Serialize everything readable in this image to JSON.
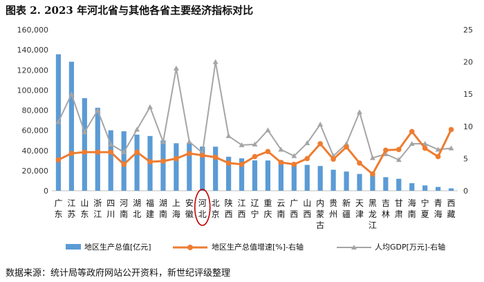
{
  "title": "图表 2.  2023 年河北省与其他各省主要经济指标对比",
  "source": "数据来源：统计局等政府网站公开资料，新世纪评级整理",
  "chart_data": {
    "type": "bar",
    "categories": [
      "广东",
      "江苏",
      "山东",
      "浙江",
      "四川",
      "河南",
      "湖北",
      "福建",
      "湖南",
      "上海",
      "安徽",
      "河北",
      "北京",
      "陕西",
      "江西",
      "辽宁",
      "重庆",
      "云南",
      "广西",
      "山西",
      "内蒙古",
      "贵州",
      "新疆",
      "天津",
      "黑龙江",
      "吉林",
      "甘肃",
      "海南",
      "宁夏",
      "青海",
      "西藏"
    ],
    "highlight_category": "河北",
    "series": [
      {
        "name": "地区生产总值[亿元]",
        "kind": "bar",
        "axis": "left",
        "color": "#5B9BD5",
        "values": [
          135600,
          128200,
          92000,
          82500,
          60100,
          59100,
          55800,
          54400,
          50000,
          47200,
          47100,
          43900,
          43800,
          33800,
          32200,
          30200,
          30100,
          30000,
          27200,
          25700,
          24600,
          20900,
          19100,
          16700,
          15900,
          13500,
          11900,
          7500,
          5300,
          3800,
          2400
        ]
      },
      {
        "name": "地区生产总值增速[%]-右轴",
        "kind": "line",
        "axis": "right",
        "color": "#ED7D31",
        "values": [
          4.8,
          5.8,
          6.0,
          6.0,
          6.0,
          4.1,
          6.0,
          4.5,
          4.6,
          5.0,
          5.8,
          5.5,
          5.2,
          4.3,
          4.1,
          5.3,
          6.1,
          4.4,
          4.1,
          5.0,
          7.3,
          4.9,
          6.8,
          4.3,
          2.6,
          6.3,
          6.4,
          9.2,
          6.6,
          5.3,
          9.5
        ]
      },
      {
        "name": "人均GDP[万元]-右轴",
        "kind": "line",
        "axis": "right",
        "color": "#A5A5A5",
        "values": [
          10.7,
          15.0,
          9.1,
          12.5,
          7.2,
          6.0,
          9.5,
          13.0,
          7.6,
          19.0,
          7.6,
          5.9,
          20.0,
          8.5,
          7.1,
          7.2,
          9.4,
          6.4,
          5.4,
          7.4,
          10.3,
          5.4,
          7.3,
          12.2,
          5.1,
          5.7,
          4.8,
          7.3,
          7.3,
          6.4,
          6.6
        ]
      }
    ],
    "y_left": {
      "min": 0,
      "max": 160000,
      "step": 20000
    },
    "y_right": {
      "min": 0,
      "max": 25,
      "step": 5
    },
    "legend_position": "bottom"
  }
}
